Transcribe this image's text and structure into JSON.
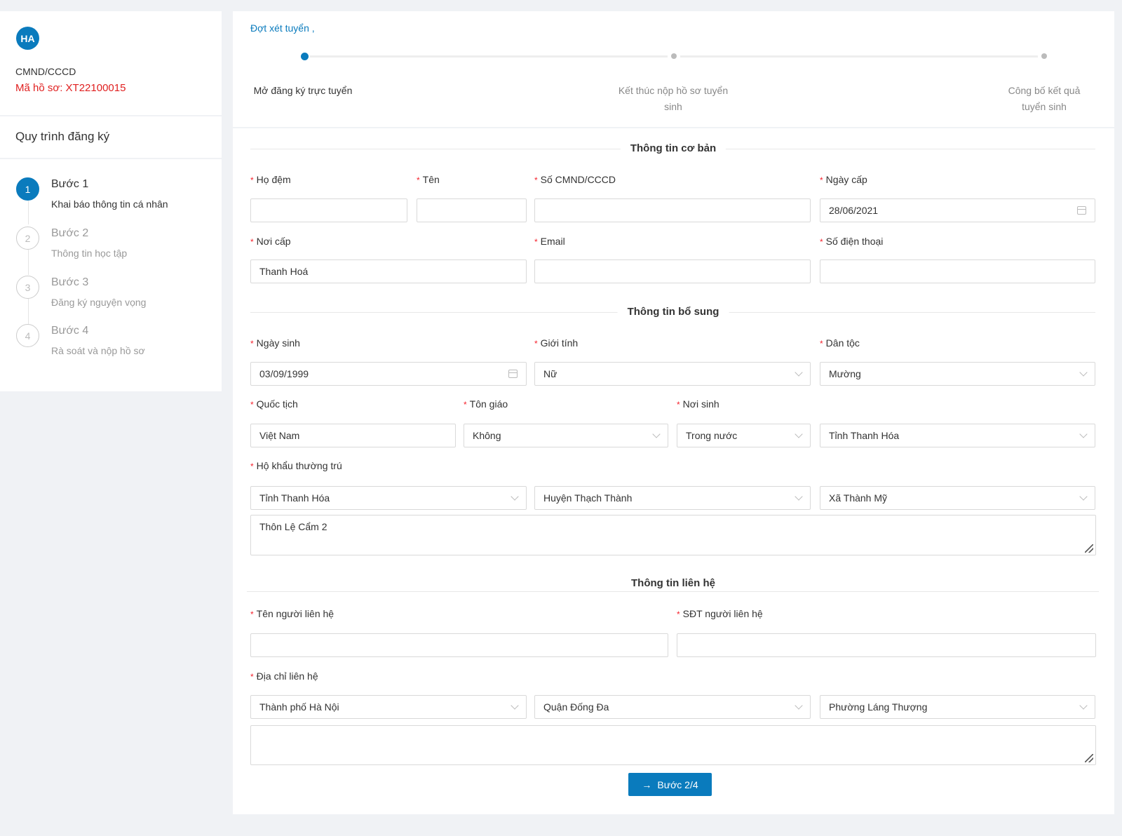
{
  "profile": {
    "initials": "HA",
    "id_label": "CMND/CCCD",
    "file_code": "Mã hồ sơ: XT22100015"
  },
  "process": {
    "title": "Quy trình đăng ký",
    "steps": [
      {
        "num": "1",
        "title": "Bước 1",
        "desc": "Khai báo thông tin cá nhân",
        "active": true
      },
      {
        "num": "2",
        "title": "Bước 2",
        "desc": "Thông tin học tập",
        "active": false
      },
      {
        "num": "3",
        "title": "Bước 3",
        "desc": "Đăng ký nguyện vọng",
        "active": false
      },
      {
        "num": "4",
        "title": "Bước 4",
        "desc": "Rà soát và nộp hồ sơ",
        "active": false
      }
    ]
  },
  "round": {
    "title": "Đợt xét tuyển ,",
    "timeline": [
      {
        "label": "Mở đăng ký trực tuyển",
        "active": true
      },
      {
        "label": "Kết thúc nộp hồ sơ tuyển sinh",
        "active": false
      },
      {
        "label": "Công bố kết quả tuyển sinh",
        "active": false
      }
    ]
  },
  "sections": {
    "basic": "Thông tin cơ bản",
    "extra": "Thông tin bổ sung",
    "contact": "Thông tin liên hệ"
  },
  "fields": {
    "ho_dem": {
      "label": "Họ đệm",
      "value": ""
    },
    "ten": {
      "label": "Tên",
      "value": ""
    },
    "cmnd": {
      "label": "Số CMND/CCCD",
      "value": ""
    },
    "ngay_cap": {
      "label": "Ngày cấp",
      "value": "28/06/2021"
    },
    "noi_cap": {
      "label": "Nơi cấp",
      "value": "Thanh Hoá"
    },
    "email": {
      "label": "Email",
      "value": ""
    },
    "sdt": {
      "label": "Số điện thoại",
      "value": ""
    },
    "ngay_sinh": {
      "label": "Ngày sinh",
      "value": "03/09/1999"
    },
    "gioi_tinh": {
      "label": "Giới tính",
      "value": "Nữ"
    },
    "dan_toc": {
      "label": "Dân tộc",
      "value": "Mường"
    },
    "quoc_tich": {
      "label": "Quốc tịch",
      "value": "Việt Nam"
    },
    "ton_giao": {
      "label": "Tôn giáo",
      "value": "Không"
    },
    "noi_sinh": {
      "label": "Nơi sinh",
      "value": "Trong nước",
      "province": "Tỉnh Thanh Hóa"
    },
    "ho_khau": {
      "label": "Hộ khẩu thường trú",
      "province": "Tỉnh Thanh Hóa",
      "district": "Huyện Thạch Thành",
      "ward": "Xã Thành Mỹ",
      "address": "Thôn Lệ Cẩm 2"
    },
    "ten_lien_he": {
      "label": "Tên người liên hệ",
      "value": ""
    },
    "sdt_lien_he": {
      "label": "SĐT người liên hệ",
      "value": ""
    },
    "dia_chi": {
      "label": "Địa chỉ liên hệ",
      "province": "Thành phố Hà Nội",
      "district": "Quận Đống Đa",
      "ward": "Phường Láng Thượng",
      "address": ""
    }
  },
  "actions": {
    "next_label": "Bước 2/4"
  },
  "colors": {
    "primary": "#0a7bbd",
    "required": "#f5222d",
    "profile_code": "#e02020"
  }
}
